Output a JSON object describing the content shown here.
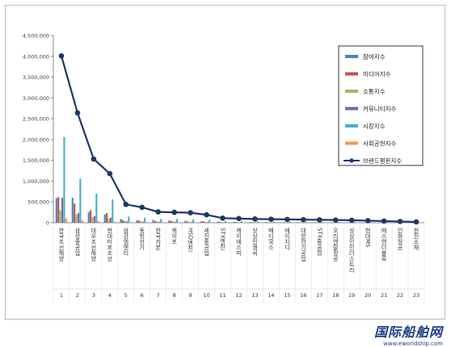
{
  "chart_data": {
    "type": "bar+line",
    "y_ticks": [
      "0",
      "500,000",
      "1,000,000",
      "1,500,000",
      "2,000,000",
      "2,500,000",
      "3,000,000",
      "3,500,000",
      "4,000,000",
      "4,500,000"
    ],
    "ylim": [
      0,
      4500000
    ],
    "categories": [
      "한국조선해양",
      "삼성중공업",
      "대우조선해양",
      "현대미포조선",
      "삼강엠앤티",
      "동방선기",
      "한국카본",
      "케이프",
      "HSD엔진",
      "세진중공업",
      "STX엔진",
      "케이에스피",
      "상상인엠씨",
      "메디쿡스",
      "에이치디",
      "대양전기공업",
      "STX중공업",
      "오리엔탈정공",
      "상상인인더스트리",
      "현대MS",
      "에스엔더블류",
      "인화정공",
      "현진소재"
    ],
    "ranks": [
      "1",
      "2",
      "3",
      "4",
      "5",
      "6",
      "7",
      "8",
      "9",
      "10",
      "11",
      "12",
      "13",
      "14",
      "15",
      "16",
      "17",
      "18",
      "19",
      "20",
      "21",
      "22",
      "23"
    ],
    "series": [
      {
        "name": "참여지수",
        "color": "#4f81bd",
        "values": [
          590000,
          600000,
          250000,
          200000,
          90000,
          60000,
          70000,
          60000,
          50000,
          40000,
          25000,
          20000,
          18000,
          15000,
          12000,
          12000,
          10000,
          10000,
          8000,
          8000,
          6000,
          6000,
          5000
        ]
      },
      {
        "name": "미디어지수",
        "color": "#c0504d",
        "values": [
          620000,
          460000,
          300000,
          230000,
          60000,
          50000,
          40000,
          40000,
          30000,
          30000,
          20000,
          18000,
          15000,
          12000,
          12000,
          10000,
          10000,
          8000,
          8000,
          6000,
          6000,
          5000,
          4000
        ]
      },
      {
        "name": "소통지수",
        "color": "#9bbb59",
        "values": [
          300000,
          200000,
          130000,
          100000,
          40000,
          30000,
          30000,
          30000,
          20000,
          20000,
          15000,
          12000,
          10000,
          10000,
          8000,
          8000,
          7000,
          6000,
          6000,
          5000,
          5000,
          4000,
          3000
        ]
      },
      {
        "name": "커뮤니티지수",
        "color": "#8064a2",
        "values": [
          600000,
          230000,
          160000,
          120000,
          30000,
          25000,
          20000,
          20000,
          15000,
          15000,
          10000,
          10000,
          8000,
          8000,
          6000,
          6000,
          5000,
          5000,
          4000,
          4000,
          3000,
          3000,
          2000
        ]
      },
      {
        "name": "시장지수",
        "color": "#4bacc6",
        "values": [
          2060000,
          1060000,
          700000,
          560000,
          150000,
          120000,
          90000,
          90000,
          80000,
          70000,
          40000,
          40000,
          35000,
          30000,
          30000,
          25000,
          25000,
          20000,
          20000,
          18000,
          15000,
          12000,
          10000
        ]
      },
      {
        "name": "사회공헌지수",
        "color": "#f79646",
        "values": [
          100000,
          60000,
          40000,
          20000,
          10000,
          5000,
          5000,
          5000,
          5000,
          5000,
          3000,
          3000,
          2000,
          2000,
          2000,
          2000,
          2000,
          1000,
          1000,
          1000,
          1000,
          1000,
          1000
        ]
      }
    ],
    "line": {
      "name": "브랜드평판지수",
      "color": "#1f3864",
      "values": [
        4010000,
        2640000,
        1530000,
        1180000,
        440000,
        370000,
        260000,
        250000,
        240000,
        190000,
        110000,
        100000,
        90000,
        85000,
        80000,
        75000,
        70000,
        65000,
        60000,
        50000,
        40000,
        30000,
        20000
      ]
    },
    "grid": false,
    "legend": "top-right"
  },
  "watermark": {
    "main": "国际船舶网",
    "sub": "www.eworldship.com"
  }
}
